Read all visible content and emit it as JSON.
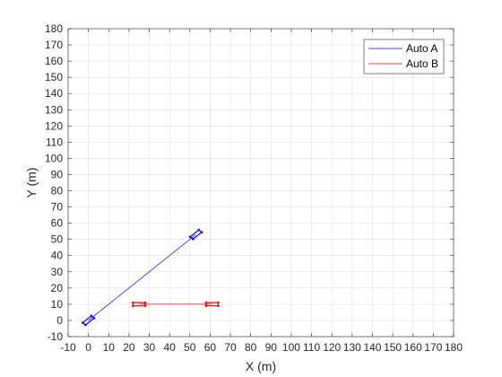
{
  "chart_data": {
    "type": "line",
    "title": "",
    "xlabel": "X (m)",
    "ylabel": "Y (m)",
    "xlim": [
      -10,
      180
    ],
    "ylim": [
      -10,
      180
    ],
    "xticks": [
      -10,
      0,
      10,
      20,
      30,
      40,
      50,
      60,
      70,
      80,
      90,
      100,
      110,
      120,
      130,
      140,
      150,
      160,
      170,
      180
    ],
    "yticks": [
      -10,
      0,
      10,
      20,
      30,
      40,
      50,
      60,
      70,
      80,
      90,
      100,
      110,
      120,
      130,
      140,
      150,
      160,
      170,
      180
    ],
    "xtick_labels": [
      "-10",
      "0",
      "10",
      "20",
      "30",
      "40",
      "50",
      "60",
      "70",
      "80",
      "90",
      "100",
      "110",
      "120",
      "130",
      "140",
      "150",
      "160",
      "170",
      "180"
    ],
    "ytick_labels": [
      "-10",
      "0",
      "10",
      "20",
      "30",
      "40",
      "50",
      "60",
      "70",
      "80",
      "90",
      "100",
      "110",
      "120",
      "130",
      "140",
      "150",
      "160",
      "170",
      "180"
    ],
    "grid": true,
    "legend_position": "top-right",
    "series": [
      {
        "name": "Auto A",
        "color": "#0000ff",
        "x": [
          0,
          53
        ],
        "y": [
          0,
          53
        ],
        "vehicle_boxes": [
          {
            "cx": 0,
            "cy": 0,
            "heading_deg": 45,
            "length": 6,
            "width": 2
          },
          {
            "cx": 53,
            "cy": 53,
            "heading_deg": 45,
            "length": 6,
            "width": 2
          }
        ]
      },
      {
        "name": "Auto B",
        "color": "#ff0000",
        "x": [
          25,
          61
        ],
        "y": [
          10,
          10
        ],
        "vehicle_boxes": [
          {
            "cx": 25,
            "cy": 10,
            "heading_deg": 0,
            "length": 6,
            "width": 2
          },
          {
            "cx": 61,
            "cy": 10,
            "heading_deg": 0,
            "length": 6,
            "width": 2
          }
        ]
      }
    ]
  }
}
